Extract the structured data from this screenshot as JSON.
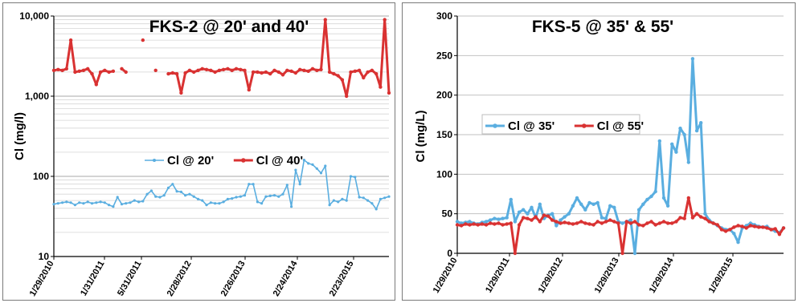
{
  "chart_data": [
    {
      "type": "line",
      "title": "FKS-2 @ 20'  and 40'",
      "ylabel": "Cl (mg/l)",
      "xlabel": "",
      "yscale": "log",
      "ylim": [
        10,
        10000
      ],
      "y_ticks": [
        "10",
        "100",
        "1,000",
        "10,000"
      ],
      "x_ticks": [
        "1/29/2010",
        "1/31/2011",
        "5/31/2011",
        "2/28/2012",
        "2/26/2013",
        "2/24/2014",
        "2/23/2015"
      ],
      "grid": "horizontal",
      "legend": "center-left",
      "series": [
        {
          "name": "Cl @ 20'",
          "color": "#5aaee0",
          "values": [
            45,
            46,
            47,
            48,
            47,
            44,
            47,
            46,
            48,
            46,
            47,
            48,
            47,
            44,
            42,
            55,
            45,
            46,
            47,
            50,
            48,
            49,
            60,
            66,
            56,
            55,
            58,
            72,
            80,
            65,
            64,
            58,
            60,
            56,
            52,
            50,
            44,
            47,
            46,
            46,
            48,
            52,
            53,
            55,
            56,
            58,
            80,
            80,
            48,
            46,
            56,
            57,
            58,
            56,
            60,
            78,
            42,
            120,
            80,
            160,
            145,
            140,
            125,
            110,
            135,
            44,
            50,
            48,
            52,
            50,
            100,
            98,
            55,
            54,
            50,
            46,
            39,
            52,
            54,
            56
          ]
        },
        {
          "name": "Cl @ 40'",
          "color": "#d93232",
          "values": [
            2100,
            2150,
            2100,
            2200,
            5000,
            2000,
            2050,
            2100,
            2200,
            1900,
            1400,
            2000,
            2100,
            2000,
            2050,
            null,
            2200,
            2000,
            null,
            null,
            null,
            5000,
            null,
            null,
            2100,
            null,
            null,
            1900,
            1950,
            1900,
            1100,
            1950,
            2100,
            2000,
            2100,
            2200,
            2150,
            2100,
            2000,
            2100,
            2150,
            2200,
            2100,
            2200,
            2150,
            2100,
            1200,
            2000,
            2000,
            1950,
            2000,
            1900,
            2100,
            2000,
            1850,
            2100,
            2050,
            1950,
            2150,
            2100,
            2050,
            2200,
            2100,
            2150,
            9000,
            2000,
            1900,
            1800,
            1600,
            1000,
            2000,
            2050,
            2100,
            1700,
            2000,
            2100,
            1900,
            1300,
            9000,
            1100
          ]
        }
      ]
    },
    {
      "type": "line",
      "title": "FKS-5 @ 35' & 55'",
      "ylabel": "Cl (mg/L)",
      "xlabel": "",
      "ylim": [
        0,
        300
      ],
      "y_ticks": [
        "0",
        "50",
        "100",
        "150",
        "200",
        "250",
        "300"
      ],
      "x_ticks": [
        "1/29/2010",
        "1/29/2011",
        "1/29/2012",
        "1/29/2013",
        "1/29/2014",
        "1/29/2015"
      ],
      "grid": "horizontal",
      "legend": "center-left",
      "series": [
        {
          "name": "Cl @ 35'",
          "color": "#5aaee0",
          "values": [
            40,
            38,
            39,
            40,
            38,
            37,
            39,
            40,
            42,
            44,
            43,
            44,
            45,
            68,
            40,
            52,
            55,
            50,
            58,
            45,
            62,
            44,
            48,
            50,
            35,
            42,
            46,
            50,
            60,
            70,
            62,
            55,
            64,
            62,
            64,
            45,
            44,
            60,
            58,
            40,
            38,
            40,
            42,
            0,
            55,
            62,
            68,
            72,
            78,
            142,
            70,
            60,
            138,
            128,
            158,
            150,
            115,
            246,
            155,
            165,
            50,
            42,
            38,
            35,
            32,
            30,
            30,
            25,
            14,
            32,
            35,
            38,
            36,
            34,
            33,
            34,
            30,
            28,
            26,
            32
          ]
        },
        {
          "name": "Cl @ 55'",
          "color": "#d93232",
          "values": [
            36,
            35,
            37,
            36,
            37,
            36,
            37,
            36,
            38,
            37,
            38,
            36,
            37,
            38,
            0,
            36,
            45,
            44,
            42,
            46,
            40,
            48,
            47,
            42,
            40,
            38,
            39,
            38,
            37,
            38,
            40,
            38,
            37,
            36,
            40,
            38,
            40,
            42,
            40,
            38,
            0,
            40,
            38,
            40,
            36,
            35,
            38,
            40,
            36,
            38,
            40,
            38,
            38,
            40,
            45,
            44,
            70,
            45,
            50,
            46,
            44,
            40,
            38,
            36,
            30,
            28,
            30,
            33,
            35,
            34,
            32,
            35,
            34,
            33,
            33,
            32,
            30,
            31,
            24,
            32
          ]
        }
      ]
    }
  ]
}
